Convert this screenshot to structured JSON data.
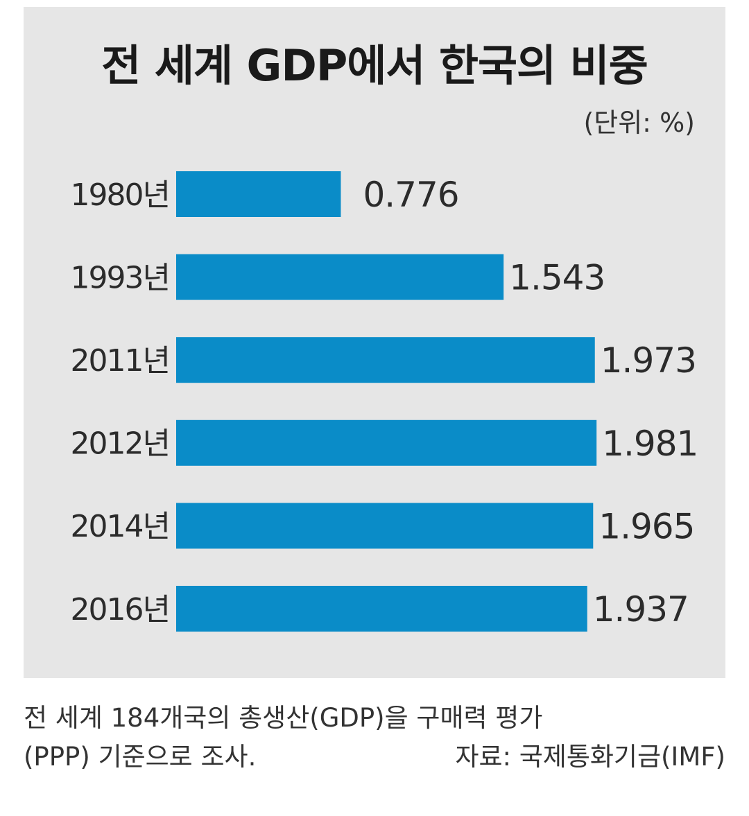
{
  "chart_data": {
    "type": "bar",
    "orientation": "horizontal",
    "title": "전 세계 GDP에서 한국의 비중",
    "unit_label": "(단위: %)",
    "categories": [
      "1980년",
      "1993년",
      "2011년",
      "2012년",
      "2014년",
      "2016년"
    ],
    "values": [
      0.776,
      1.543,
      1.973,
      1.981,
      1.965,
      1.937
    ],
    "value_labels": [
      "0.776",
      "1.543",
      "1.973",
      "1.981",
      "1.965",
      "1.937"
    ],
    "xlim": [
      0,
      2
    ],
    "grid": false,
    "legend": "none",
    "bar_color": "#0a8cc8",
    "background_color": "#e6e6e6"
  },
  "footnote": {
    "line1": "전 세계 184개국의 총생산(GDP)을 구매력 평가",
    "line2": "(PPP) 기준으로 조사.",
    "source": "자료: 국제통화기금(IMF)"
  }
}
